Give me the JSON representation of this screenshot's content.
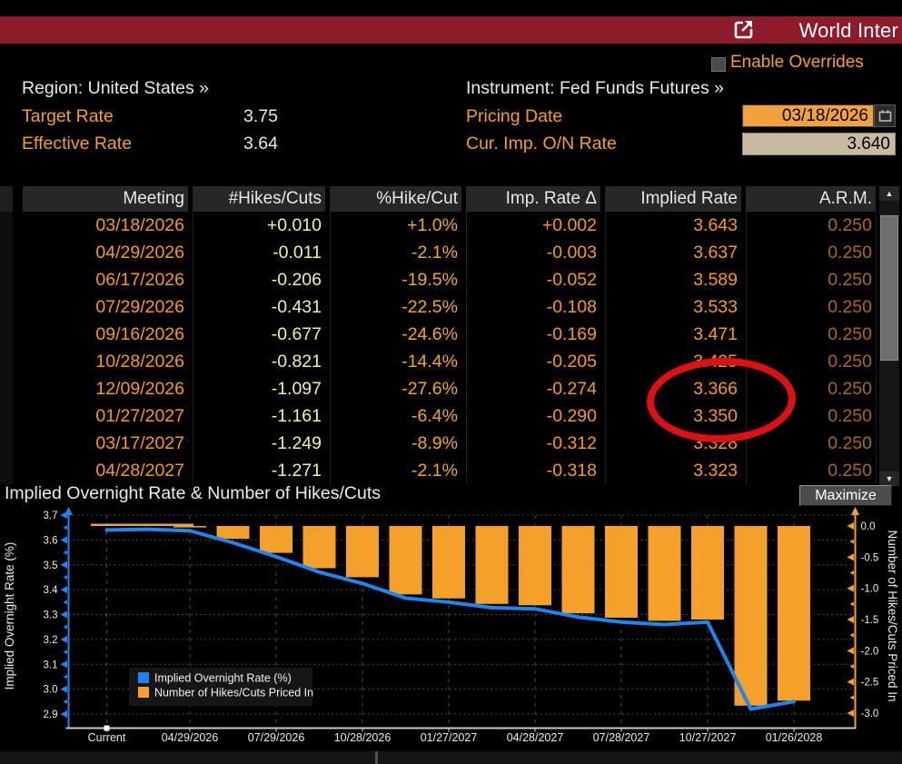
{
  "titlebar": {
    "title": "World Inter",
    "bg_color": "#8e1b29"
  },
  "overrides": {
    "label": "Enable Overrides"
  },
  "params": {
    "region_text": "Region: United States »",
    "instrument_text": "Instrument: Fed Funds Futures »",
    "target_rate_label": "Target Rate",
    "target_rate": "3.75",
    "effective_rate_label": "Effective Rate",
    "effective_rate": "3.64",
    "pricing_date_label": "Pricing Date",
    "pricing_date": "03/18/2026",
    "cur_imp_label": "Cur. Imp. O/N Rate",
    "cur_imp_rate": "3.640"
  },
  "table": {
    "columns": [
      "Meeting",
      "#Hikes/Cuts",
      "%Hike/Cut",
      "Imp. Rate Δ",
      "Implied Rate",
      "A.R.M."
    ],
    "rows": [
      [
        "03/18/2026",
        "+0.010",
        "+1.0%",
        "+0.002",
        "3.643",
        "0.250"
      ],
      [
        "04/29/2026",
        "-0.011",
        "-2.1%",
        "-0.003",
        "3.637",
        "0.250"
      ],
      [
        "06/17/2026",
        "-0.206",
        "-19.5%",
        "-0.052",
        "3.589",
        "0.250"
      ],
      [
        "07/29/2026",
        "-0.431",
        "-22.5%",
        "-0.108",
        "3.533",
        "0.250"
      ],
      [
        "09/16/2026",
        "-0.677",
        "-24.6%",
        "-0.169",
        "3.471",
        "0.250"
      ],
      [
        "10/28/2026",
        "-0.821",
        "-14.4%",
        "-0.205",
        "3.425",
        "0.250"
      ],
      [
        "12/09/2026",
        "-1.097",
        "-27.6%",
        "-0.274",
        "3.366",
        "0.250"
      ],
      [
        "01/27/2027",
        "-1.161",
        "-6.4%",
        "-0.290",
        "3.350",
        "0.250"
      ],
      [
        "03/17/2027",
        "-1.249",
        "-8.9%",
        "-0.312",
        "3.328",
        "0.250"
      ],
      [
        "04/28/2027",
        "-1.271",
        "-2.1%",
        "-0.318",
        "3.323",
        "0.250"
      ]
    ]
  },
  "annotation": {
    "type": "red-circle",
    "around_value": "3.366"
  },
  "chart_section": {
    "title": "Implied Overnight Rate & Number of Hikes/Cuts",
    "maximize_label": "Maximize"
  },
  "chart_data": {
    "type": "line+bar",
    "title": "Implied Overnight Rate & Number of Hikes/Cuts",
    "x_axis_labels": [
      "Current",
      "04/29/2026",
      "07/29/2026",
      "10/28/2026",
      "01/27/2027",
      "04/28/2027",
      "07/28/2027",
      "10/27/2027",
      "01/26/2028"
    ],
    "categories": [
      "03/18/2026",
      "04/29/2026",
      "06/17/2026",
      "07/29/2026",
      "09/16/2026",
      "10/28/2026",
      "12/09/2026",
      "01/27/2027",
      "03/17/2027",
      "04/28/2027",
      "",
      "07/28/2027",
      "",
      "10/27/2027",
      "",
      "01/26/2028"
    ],
    "series": [
      {
        "name": "Implied Overnight Rate (%)",
        "type": "line",
        "axis": "left",
        "color": "#1d86f5",
        "current_label": "Current",
        "current_value": 3.64,
        "values": [
          3.643,
          3.637,
          3.589,
          3.533,
          3.471,
          3.425,
          3.366,
          3.35,
          3.328,
          3.323,
          3.29,
          3.27,
          3.26,
          3.27,
          2.92,
          2.95
        ]
      },
      {
        "name": "Number of Hikes/Cuts Priced In",
        "type": "bar",
        "axis": "right",
        "color": "#f5a02b",
        "values": [
          0.01,
          -0.011,
          -0.206,
          -0.431,
          -0.677,
          -0.821,
          -1.097,
          -1.161,
          -1.249,
          -1.271,
          -1.4,
          -1.47,
          -1.52,
          -1.5,
          -2.88,
          -2.8
        ]
      }
    ],
    "left_axis": {
      "label": "Implied Overnight Rate (%)",
      "min": 2.9,
      "max": 3.7,
      "tick_step": 0.1,
      "ticks": [
        "3.7",
        "3.6",
        "3.5",
        "3.4",
        "3.3",
        "3.2",
        "3.1",
        "3.0",
        "2.9"
      ]
    },
    "right_axis": {
      "label": "Number of Hikes/Cuts Priced In",
      "min": -3.0,
      "max": 0.0,
      "tick_step": 0.5,
      "ticks": [
        "0.0",
        "-0.5",
        "-1.0",
        "-1.5",
        "-2.0",
        "-2.5",
        "-3.0"
      ]
    },
    "legend": {
      "position": "bottom-left",
      "entries": [
        "Implied Overnight Rate (%)",
        "Number of Hikes/Cuts Priced In"
      ]
    },
    "grid": true
  },
  "colors": {
    "titlebar_red": "#8e1b29",
    "amber_label": "#f5a01e",
    "table_date": "#f79b17",
    "table_hikes": "#f7f09e",
    "table_pct": "#f2a81e",
    "table_arm": "#a96a10",
    "line_blue": "#1d86f5",
    "bar_orange": "#f5a02b",
    "annotation_red": "#dd1111"
  }
}
